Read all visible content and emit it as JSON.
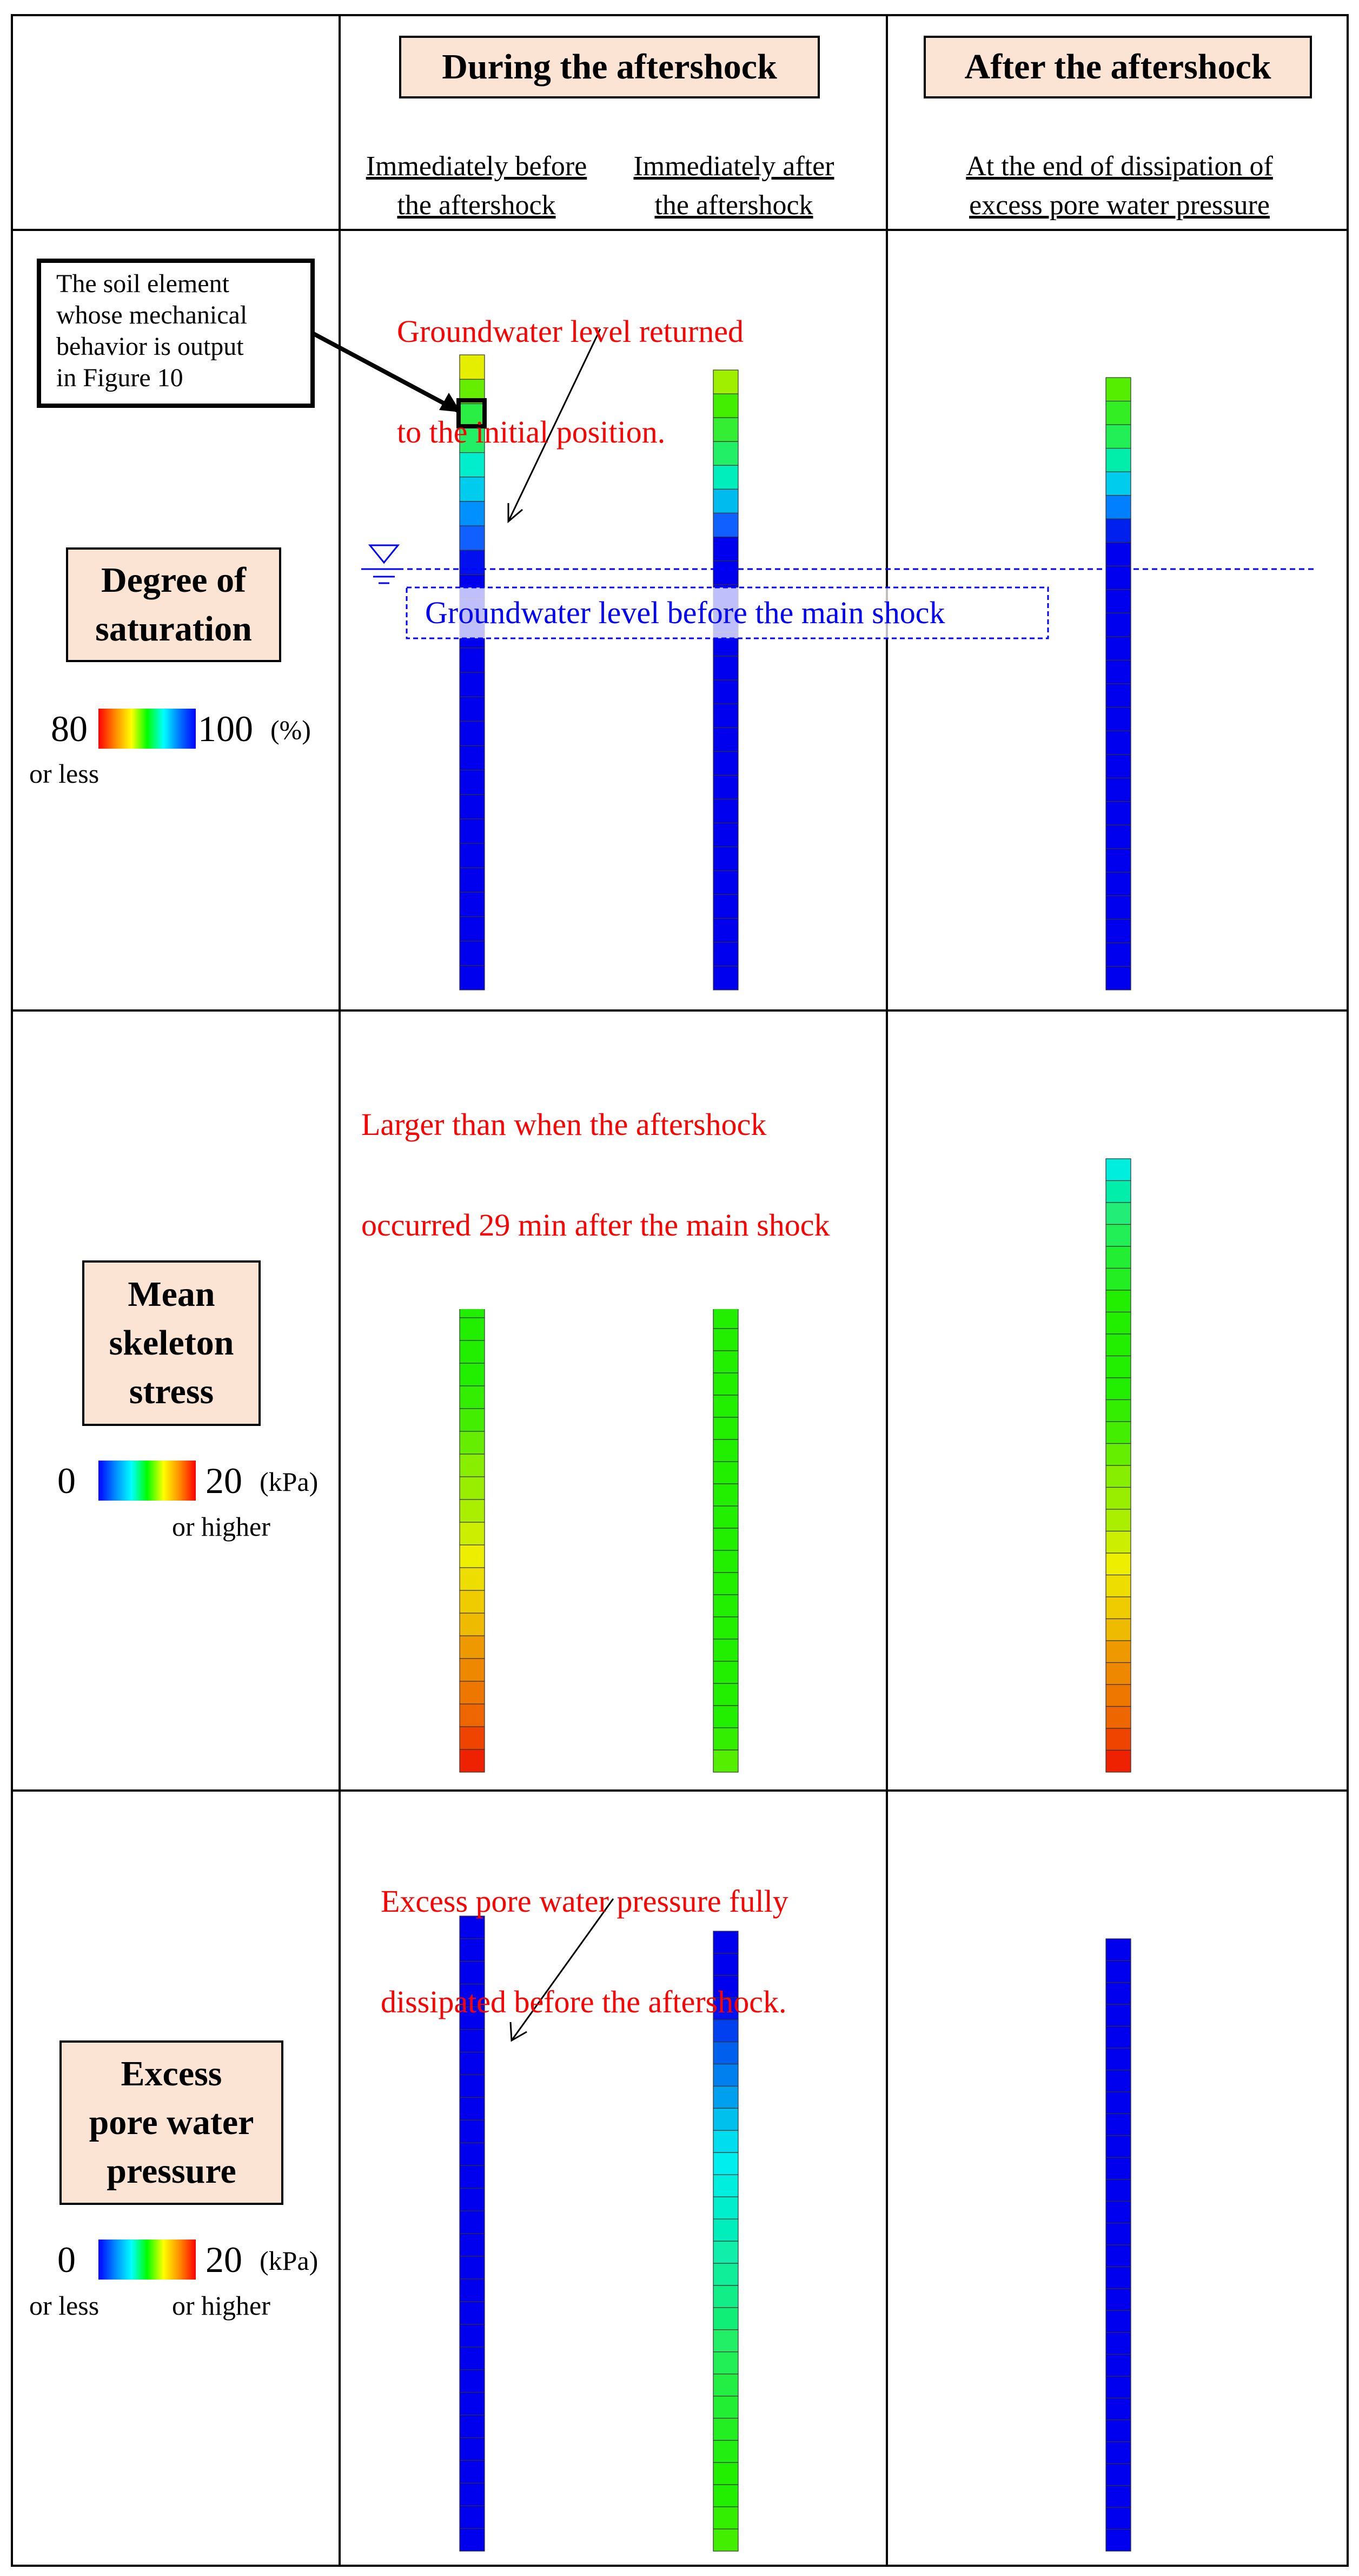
{
  "header": {
    "during": "During the aftershock",
    "after": "After the aftershock"
  },
  "subheaders": {
    "before": [
      "Immediately before",
      "the aftershock"
    ],
    "after_shock": [
      "Immediately after",
      "the aftershock"
    ],
    "end": [
      "At the end of dissipation of",
      "excess pore water pressure"
    ]
  },
  "rows": {
    "saturation": {
      "label": [
        "Degree of",
        "saturation"
      ],
      "scale_min": "80",
      "scale_max": "100",
      "unit": "(%)",
      "note_min": "or less",
      "note_max": ""
    },
    "skeleton": {
      "label": [
        "Mean",
        "skeleton",
        "stress"
      ],
      "scale_min": "0",
      "scale_max": "20",
      "unit": "(kPa)",
      "note_min": "",
      "note_max": "or higher"
    },
    "pore": {
      "label": [
        "Excess",
        "pore water",
        "pressure"
      ],
      "scale_min": "0",
      "scale_max": "20",
      "unit": "(kPa)",
      "note_min": "or less",
      "note_max": "or higher"
    }
  },
  "annotations": {
    "soil_element": [
      "The soil element",
      "whose mechanical",
      "behavior is output",
      "in Figure 10"
    ],
    "gw_returned": [
      "Groundwater level returned",
      "to the initial position."
    ],
    "gw_before": "Groundwater level before the main shock",
    "larger": [
      "Larger than when the aftershock",
      "occurred 29 min after the main shock"
    ],
    "dissipated": [
      "Excess pore water pressure fully",
      "dissipated before the aftershock."
    ]
  },
  "colormaps": {
    "saturation": [
      "#ff0000",
      "#ff8800",
      "#ffff00",
      "#00ff00",
      "#00ffff",
      "#0070ff",
      "#0000ff"
    ],
    "stress": [
      "#0000ff",
      "#0088ff",
      "#00ffff",
      "#00ff00",
      "#ffff00",
      "#ff8800",
      "#ff0000"
    ]
  },
  "columns": {
    "saturation": [
      [
        "#e6ee00",
        "#66ee00",
        "#2aee44",
        "#22ee66",
        "#00eecc",
        "#00ccee",
        "#0090ff",
        "#1060ff",
        "#0010ee",
        "#0000ee",
        "#0000ee",
        "#0000ee",
        "#0000ee",
        "#0000ee",
        "#0000ee",
        "#0000ee",
        "#0000ee",
        "#0000ee",
        "#0000ee",
        "#0000ee",
        "#0000ee",
        "#0000ee",
        "#0000ee",
        "#0000ee",
        "#0000ee",
        "#0000ee"
      ],
      [
        "#a0ee00",
        "#44ee00",
        "#33ee33",
        "#22ee66",
        "#00eebb",
        "#00bbee",
        "#1060ff",
        "#0000ee",
        "#0000ee",
        "#0000ee",
        "#0000ee",
        "#0000ee",
        "#0000ee",
        "#0000ee",
        "#0000ee",
        "#0000ee",
        "#0000ee",
        "#0000ee",
        "#0000ee",
        "#0000ee",
        "#0000ee",
        "#0000ee",
        "#0000ee",
        "#0000ee",
        "#0000ee",
        "#0000ee"
      ],
      [
        "#55ee00",
        "#33ee22",
        "#22ee55",
        "#00eeaa",
        "#00ccee",
        "#0080ff",
        "#0020ee",
        "#0000ee",
        "#0000ee",
        "#0000ee",
        "#0000ee",
        "#0000ee",
        "#0000ee",
        "#0000ee",
        "#0000ee",
        "#0000ee",
        "#0000ee",
        "#0000ee",
        "#0000ee",
        "#0000ee",
        "#0000ee",
        "#0000ee",
        "#0000ee",
        "#0000ee",
        "#0000ee",
        "#0000ee"
      ]
    ],
    "skeleton": [
      [
        "#00eedd",
        "#00eeaa",
        "#22ee77",
        "#22ee55",
        "#22ee33",
        "#22ee22",
        "#22ee00",
        "#22ee00",
        "#22ee00",
        "#22ee00",
        "#22ee00",
        "#33ee00",
        "#44ee00",
        "#66ee00",
        "#88ee00",
        "#99ee00",
        "#aaee00",
        "#ccee00",
        "#eeee00",
        "#eedd00",
        "#eecc00",
        "#eebb00",
        "#ee9900",
        "#ee8800",
        "#ee7700",
        "#ee6600",
        "#ee4400",
        "#ee2200"
      ],
      [
        "#00eedd",
        "#00eeaa",
        "#22ee77",
        "#22ee55",
        "#22ee33",
        "#22ee22",
        "#22ee00",
        "#22ee00",
        "#22ee00",
        "#22ee00",
        "#22ee00",
        "#22ee00",
        "#22ee00",
        "#22ee00",
        "#22ee00",
        "#22ee00",
        "#22ee00",
        "#22ee00",
        "#22ee00",
        "#22ee00",
        "#22ee00",
        "#22ee00",
        "#22ee00",
        "#22ee00",
        "#22ee00",
        "#22ee00",
        "#33ee00",
        "#55ee00"
      ],
      [
        "#00eedd",
        "#00eeaa",
        "#22ee77",
        "#22ee55",
        "#22ee33",
        "#22ee22",
        "#22ee00",
        "#22ee00",
        "#22ee00",
        "#22ee00",
        "#22ee00",
        "#33ee00",
        "#44ee00",
        "#66ee00",
        "#88ee00",
        "#99ee00",
        "#aaee00",
        "#ccee00",
        "#eeee00",
        "#eedd00",
        "#eecc00",
        "#eebb00",
        "#ee9900",
        "#ee8800",
        "#ee7700",
        "#ee6600",
        "#ee4400",
        "#ee2200"
      ]
    ],
    "pore": [
      [
        "#0000ee",
        "#0000ee",
        "#0000ee",
        "#0000ee",
        "#0000ee",
        "#0000ee",
        "#0000ee",
        "#0000ee",
        "#0000ee",
        "#0000ee",
        "#0000ee",
        "#0000ee",
        "#0000ee",
        "#0000ee",
        "#0000ee",
        "#0000ee",
        "#0000ee",
        "#0000ee",
        "#0000ee",
        "#0000ee",
        "#0000ee",
        "#0000ee",
        "#0000ee",
        "#0000ee",
        "#0000ee",
        "#0000ee",
        "#0000ee",
        "#0000ee"
      ],
      [
        "#0000ee",
        "#0000ee",
        "#0000ee",
        "#0010ee",
        "#0040ee",
        "#0060ee",
        "#0080ee",
        "#00a0ee",
        "#00c0ee",
        "#00ddee",
        "#00eeee",
        "#00eedd",
        "#00eecc",
        "#00eebb",
        "#11eeaa",
        "#11ee99",
        "#11ee88",
        "#11ee77",
        "#22ee66",
        "#22ee55",
        "#22ee44",
        "#22ee33",
        "#22ee22",
        "#22ee11",
        "#22ee00",
        "#22ee00",
        "#33ee00",
        "#44ee00"
      ],
      [
        "#0000ee",
        "#0000ee",
        "#0000ee",
        "#0000ee",
        "#0000ee",
        "#0000ee",
        "#0000ee",
        "#0000ee",
        "#0000ee",
        "#0000ee",
        "#0000ee",
        "#0000ee",
        "#0000ee",
        "#0000ee",
        "#0000ee",
        "#0000ee",
        "#0000ee",
        "#0000ee",
        "#0000ee",
        "#0000ee",
        "#0000ee",
        "#0000ee",
        "#0000ee",
        "#0000ee",
        "#0000ee",
        "#0000ee",
        "#0000ee",
        "#0000ee"
      ]
    ]
  }
}
